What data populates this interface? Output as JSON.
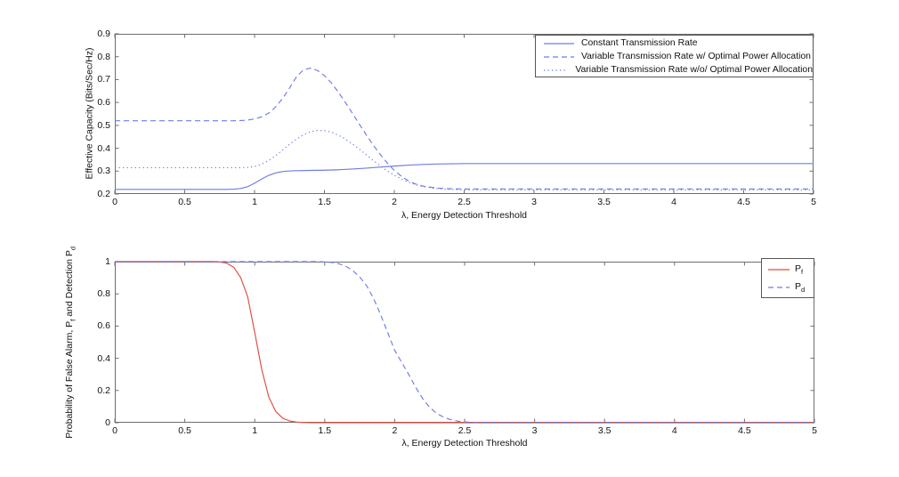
{
  "figure": {
    "background": "#ffffff",
    "frame_color": "#6e6e6e",
    "text_color": "#111111"
  },
  "colors": {
    "blue": "#6e7ce6",
    "red": "#e04b40"
  },
  "chart_data": [
    {
      "name": "effective-capacity-plot",
      "type": "line",
      "xlabel": "λ, Energy Detection Threshold",
      "ylabel": "Effective Capacity (Bits/Sec/Hz)",
      "xlim": [
        0,
        5
      ],
      "ylim": [
        0.2,
        0.9
      ],
      "xticks": [
        0,
        0.5,
        1,
        1.5,
        2,
        2.5,
        3,
        3.5,
        4,
        4.5,
        5
      ],
      "xtick_labels": [
        "0",
        "0.5",
        "1",
        "1.5",
        "2",
        "2.5",
        "3",
        "3.5",
        "4",
        "4.5",
        "5"
      ],
      "yticks": [
        0.2,
        0.3,
        0.4,
        0.5,
        0.6,
        0.7,
        0.8,
        0.9
      ],
      "ytick_labels": [
        "0.2",
        "0.3",
        "0.4",
        "0.5",
        "0.6",
        "0.7",
        "0.8",
        "0.9"
      ],
      "grid": false,
      "legend_position": "top-right-inside",
      "series": [
        {
          "name": "Constant Transmission Rate",
          "style": "solid",
          "color": "#6e7ce6",
          "points": [
            [
              0,
              0.22
            ],
            [
              0.8,
              0.22
            ],
            [
              0.85,
              0.221
            ],
            [
              0.9,
              0.224
            ],
            [
              0.95,
              0.232
            ],
            [
              1.0,
              0.247
            ],
            [
              1.05,
              0.265
            ],
            [
              1.1,
              0.281
            ],
            [
              1.15,
              0.292
            ],
            [
              1.2,
              0.298
            ],
            [
              1.25,
              0.301
            ],
            [
              1.3,
              0.302
            ],
            [
              1.4,
              0.303
            ],
            [
              1.5,
              0.304
            ],
            [
              1.6,
              0.306
            ],
            [
              1.7,
              0.309
            ],
            [
              1.8,
              0.313
            ],
            [
              1.9,
              0.318
            ],
            [
              2.0,
              0.322
            ],
            [
              2.1,
              0.326
            ],
            [
              2.2,
              0.329
            ],
            [
              2.3,
              0.331
            ],
            [
              2.4,
              0.332
            ],
            [
              2.5,
              0.333
            ],
            [
              5,
              0.333
            ]
          ]
        },
        {
          "name": "Variable Transmission Rate w/ Optimal Power Allocation",
          "style": "dashed",
          "color": "#6e7ce6",
          "points": [
            [
              0,
              0.52
            ],
            [
              0.85,
              0.52
            ],
            [
              0.9,
              0.521
            ],
            [
              0.95,
              0.523
            ],
            [
              1.0,
              0.528
            ],
            [
              1.05,
              0.537
            ],
            [
              1.1,
              0.553
            ],
            [
              1.15,
              0.58
            ],
            [
              1.2,
              0.617
            ],
            [
              1.25,
              0.663
            ],
            [
              1.3,
              0.712
            ],
            [
              1.35,
              0.743
            ],
            [
              1.4,
              0.75
            ],
            [
              1.45,
              0.74
            ],
            [
              1.5,
              0.717
            ],
            [
              1.55,
              0.685
            ],
            [
              1.6,
              0.645
            ],
            [
              1.65,
              0.6
            ],
            [
              1.7,
              0.553
            ],
            [
              1.75,
              0.505
            ],
            [
              1.8,
              0.458
            ],
            [
              1.85,
              0.413
            ],
            [
              1.9,
              0.372
            ],
            [
              1.95,
              0.335
            ],
            [
              2.0,
              0.303
            ],
            [
              2.05,
              0.278
            ],
            [
              2.1,
              0.258
            ],
            [
              2.15,
              0.244
            ],
            [
              2.2,
              0.235
            ],
            [
              2.3,
              0.226
            ],
            [
              2.4,
              0.223
            ],
            [
              2.5,
              0.222
            ],
            [
              5,
              0.222
            ]
          ]
        },
        {
          "name": "Variable Transmission Rate w/o/ Optimal Power Allocation",
          "style": "dotted",
          "color": "#6e7ce6",
          "points": [
            [
              0,
              0.315
            ],
            [
              0.9,
              0.315
            ],
            [
              0.95,
              0.316
            ],
            [
              1.0,
              0.32
            ],
            [
              1.05,
              0.33
            ],
            [
              1.1,
              0.346
            ],
            [
              1.15,
              0.367
            ],
            [
              1.2,
              0.392
            ],
            [
              1.25,
              0.417
            ],
            [
              1.3,
              0.44
            ],
            [
              1.35,
              0.459
            ],
            [
              1.4,
              0.472
            ],
            [
              1.45,
              0.478
            ],
            [
              1.5,
              0.477
            ],
            [
              1.55,
              0.47
            ],
            [
              1.6,
              0.457
            ],
            [
              1.65,
              0.44
            ],
            [
              1.7,
              0.419
            ],
            [
              1.75,
              0.396
            ],
            [
              1.8,
              0.371
            ],
            [
              1.85,
              0.346
            ],
            [
              1.9,
              0.323
            ],
            [
              1.95,
              0.301
            ],
            [
              2.0,
              0.282
            ],
            [
              2.05,
              0.266
            ],
            [
              2.1,
              0.252
            ],
            [
              2.15,
              0.241
            ],
            [
              2.2,
              0.233
            ],
            [
              2.3,
              0.224
            ],
            [
              2.4,
              0.22
            ],
            [
              2.5,
              0.218
            ],
            [
              5,
              0.218
            ]
          ]
        }
      ]
    },
    {
      "name": "detection-probability-plot",
      "type": "line",
      "xlabel": "λ, Energy Detection Threshold",
      "ylabel": "Probability of False Alarm, Pf and Detection Pd",
      "ylabel_parts": [
        {
          "t": "Probability of False Alarm, P"
        },
        {
          "t": "f",
          "sub": true
        },
        {
          "t": " and Detection P"
        },
        {
          "t": "d",
          "sub": true
        }
      ],
      "xlim": [
        0,
        5
      ],
      "ylim": [
        0,
        1
      ],
      "xticks": [
        0,
        0.5,
        1,
        1.5,
        2,
        2.5,
        3,
        3.5,
        4,
        4.5,
        5
      ],
      "xtick_labels": [
        "0",
        "0.5",
        "1",
        "1.5",
        "2",
        "2.5",
        "3",
        "3.5",
        "4",
        "4.5",
        "5"
      ],
      "yticks": [
        0,
        0.2,
        0.4,
        0.6,
        0.8,
        1
      ],
      "ytick_labels": [
        "0",
        "0.2",
        "0.4",
        "0.6",
        "0.8",
        "1"
      ],
      "grid": false,
      "legend_position": "top-right-inside",
      "series": [
        {
          "name": "Pf",
          "label_parts": [
            {
              "t": "P"
            },
            {
              "t": "f",
              "sub": true
            }
          ],
          "style": "solid",
          "color": "#e04b40",
          "points": [
            [
              0,
              1
            ],
            [
              0.7,
              1
            ],
            [
              0.75,
              0.998
            ],
            [
              0.8,
              0.99
            ],
            [
              0.85,
              0.965
            ],
            [
              0.9,
              0.9
            ],
            [
              0.95,
              0.78
            ],
            [
              1.0,
              0.56
            ],
            [
              1.05,
              0.33
            ],
            [
              1.1,
              0.16
            ],
            [
              1.15,
              0.07
            ],
            [
              1.2,
              0.028
            ],
            [
              1.25,
              0.011
            ],
            [
              1.3,
              0.004
            ],
            [
              1.35,
              0.001
            ],
            [
              1.4,
              0
            ],
            [
              5,
              0
            ]
          ]
        },
        {
          "name": "Pd",
          "label_parts": [
            {
              "t": "P"
            },
            {
              "t": "d",
              "sub": true
            }
          ],
          "style": "dashed",
          "color": "#6e7ce6",
          "points": [
            [
              0,
              1
            ],
            [
              1.45,
              1
            ],
            [
              1.5,
              0.998
            ],
            [
              1.55,
              0.995
            ],
            [
              1.6,
              0.987
            ],
            [
              1.65,
              0.972
            ],
            [
              1.7,
              0.945
            ],
            [
              1.75,
              0.905
            ],
            [
              1.8,
              0.85
            ],
            [
              1.85,
              0.77
            ],
            [
              1.9,
              0.67
            ],
            [
              1.95,
              0.56
            ],
            [
              2.0,
              0.45
            ],
            [
              2.05,
              0.375
            ],
            [
              2.1,
              0.3
            ],
            [
              2.15,
              0.22
            ],
            [
              2.2,
              0.15
            ],
            [
              2.25,
              0.095
            ],
            [
              2.3,
              0.058
            ],
            [
              2.35,
              0.034
            ],
            [
              2.4,
              0.019
            ],
            [
              2.45,
              0.01
            ],
            [
              2.5,
              0.005
            ],
            [
              2.55,
              0.002
            ],
            [
              2.6,
              0
            ],
            [
              5,
              0
            ]
          ]
        }
      ]
    }
  ]
}
